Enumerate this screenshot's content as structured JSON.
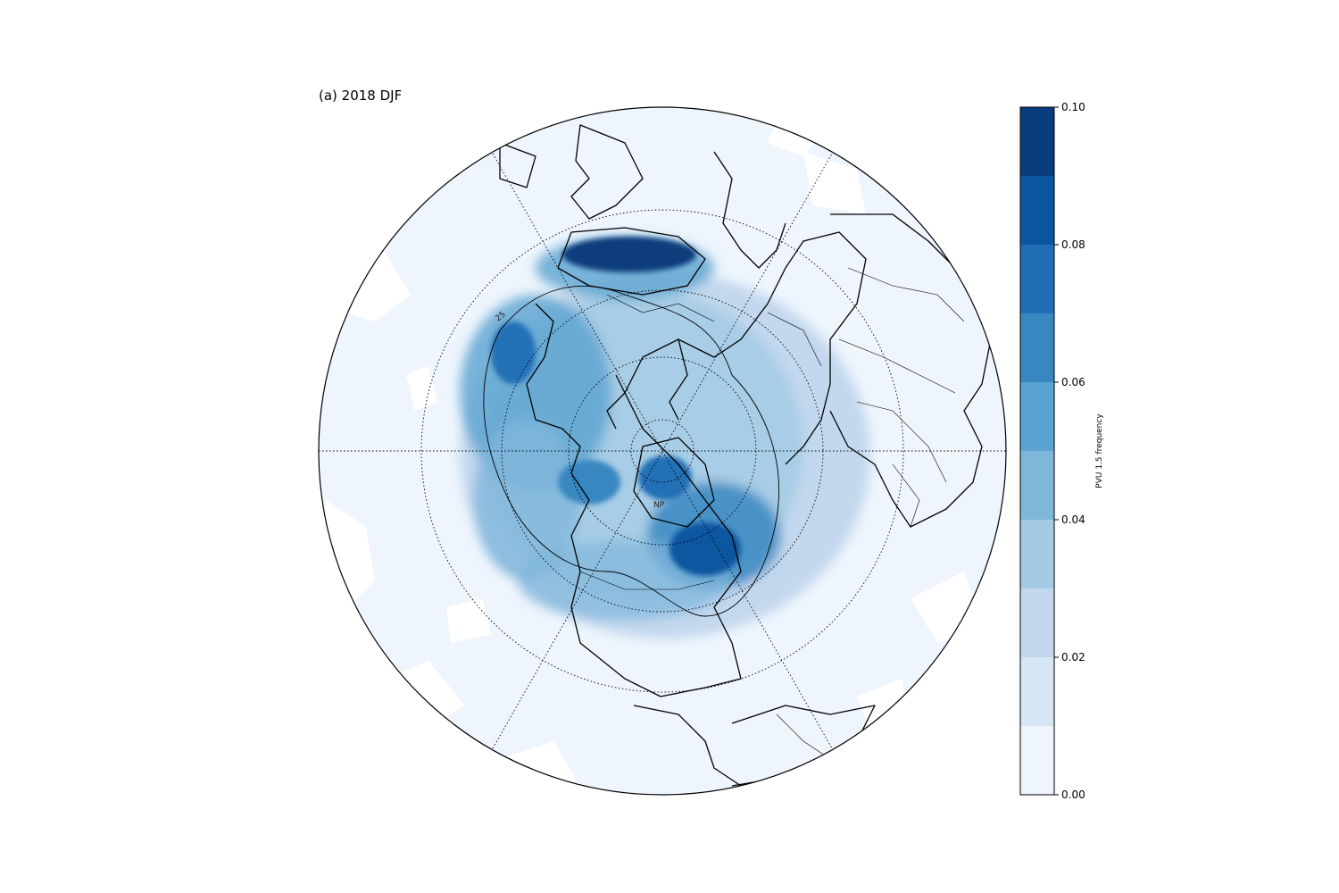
{
  "figure": {
    "panel_title": "(a) 2018 DJF",
    "projection": "north-polar-stereographic",
    "pole_label": "NP"
  },
  "colorbar": {
    "label": "PVU 1.5 frequency",
    "vmin": 0.0,
    "vmax": 0.1,
    "levels": [
      0.0,
      0.01,
      0.02,
      0.03,
      0.04,
      0.05,
      0.06,
      0.07,
      0.08,
      0.09,
      0.1
    ],
    "colors": [
      "#eef5fd",
      "#d7e6f5",
      "#c3d8ee",
      "#a3cbe4",
      "#7fb7db",
      "#5ba3d0",
      "#3987c1",
      "#206fb5",
      "#0c56a0",
      "#083c7c"
    ],
    "ticks": [
      {
        "value": 0.0,
        "label": "0.00"
      },
      {
        "value": 0.02,
        "label": "0.02"
      },
      {
        "value": 0.04,
        "label": "0.04"
      },
      {
        "value": 0.06,
        "label": "0.06"
      },
      {
        "value": 0.08,
        "label": "0.08"
      },
      {
        "value": 0.1,
        "label": "0.10"
      }
    ]
  },
  "contour": {
    "level_label": "25"
  },
  "colors": {
    "background": "#ffffff",
    "ocean_base": "#eef5fd",
    "lines": "#000000"
  }
}
